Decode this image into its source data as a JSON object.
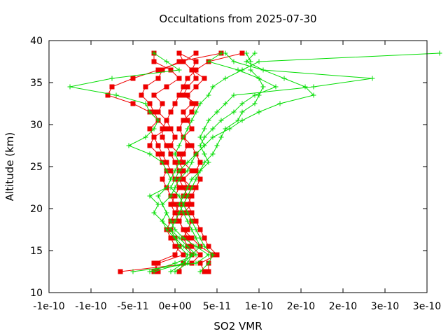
{
  "chart_data": {
    "type": "scatter",
    "title": "Occultations from 2025-07-30",
    "xlabel": "SO2 VMR",
    "ylabel": "Altitude (km)",
    "xlim": [
      -1.5e-10,
      3e-10
    ],
    "ylim": [
      10,
      40
    ],
    "x_tick_values": [
      -1.5e-10,
      -1e-10,
      -5e-11,
      0,
      5e-11,
      1e-10,
      1.5e-10,
      2e-10,
      2.5e-10,
      3e-10
    ],
    "x_tick_labels": [
      "-1e-10",
      "-1e-10",
      "-5e-11",
      "0e+00",
      "5e-11",
      "1e-10",
      "2e-10",
      "2e-10",
      "3e-10",
      "3e-10"
    ],
    "y_tick_values": [
      10,
      15,
      20,
      25,
      30,
      35,
      40
    ],
    "y_tick_labels": [
      "10",
      "15",
      "20",
      "25",
      "30",
      "35",
      "40"
    ],
    "grid": false,
    "legend": "none",
    "colors": {
      "red_series": "#ee0000",
      "green_series": "#00dd00",
      "axes": "#000000"
    },
    "series": [
      {
        "color": "#ee0000",
        "marker": "square",
        "altitudes": [
          38.5,
          37.5,
          36.5,
          35.5,
          34.5,
          33.5,
          32.5,
          31.5,
          30.5,
          29.5,
          28.5,
          27.5,
          26.5,
          25.5,
          24.5,
          23.5,
          22.5,
          21.5,
          20.5,
          19.5,
          18.5,
          17.5,
          16.5,
          15.5,
          14.5,
          13.5,
          12.5
        ],
        "profiles": [
          [
            8e-11,
            4e-11,
            2.5e-11,
            1.5e-11,
            1e-11,
            5e-12,
            0,
            -5e-12,
            -1e-11,
            -1.5e-11,
            -1.5e-11,
            -1e-11,
            -5e-12,
            0,
            5e-12,
            1e-11,
            1.5e-11,
            1e-11,
            5e-12,
            0,
            5e-12,
            1e-11,
            1.5e-11,
            2e-11,
            3e-11,
            2e-11,
            -6.5e-11
          ],
          [
            2.5e-11,
            1e-11,
            -2e-11,
            -5e-11,
            -7.5e-11,
            -8e-11,
            -5e-11,
            -3e-11,
            -2e-11,
            -1e-11,
            -2.5e-11,
            -2e-11,
            -1.5e-11,
            -1e-11,
            -5e-12,
            0,
            5e-12,
            0,
            -5e-12,
            0,
            -5e-12,
            -1e-11,
            -5e-12,
            0,
            1e-11,
            -2e-11,
            -2.5e-11
          ],
          [
            5e-12,
            2.5e-11,
            2e-11,
            3.5e-11,
            2.5e-11,
            1.5e-11,
            2e-11,
            1e-11,
            1.5e-11,
            2e-11,
            1e-11,
            2e-11,
            2.5e-11,
            3e-11,
            2.5e-11,
            3e-11,
            2.5e-11,
            2e-11,
            1.5e-11,
            2e-11,
            2.5e-11,
            3e-11,
            3.5e-11,
            4e-11,
            5e-11,
            3e-11,
            3.5e-11
          ],
          [
            5.5e-11,
            5e-12,
            -1.5e-11,
            -2e-11,
            -3.5e-11,
            -4e-11,
            -3e-11,
            -2.5e-11,
            -2e-11,
            -3e-11,
            -2.5e-11,
            -3e-11,
            -2e-11,
            -1.5e-11,
            -1e-11,
            -1.5e-11,
            -1e-11,
            -5e-12,
            0,
            5e-12,
            0,
            -5e-12,
            0,
            5e-12,
            0,
            -2.5e-11,
            -2e-11
          ],
          [
            -2.5e-11,
            -2.5e-11,
            -5e-12,
            5e-12,
            -1e-11,
            -2.5e-11,
            -1.5e-11,
            -2e-11,
            -1e-11,
            -5e-12,
            0,
            -5e-12,
            5e-12,
            1e-11,
            2e-11,
            1e-11,
            2e-11,
            1.5e-11,
            1e-11,
            1.5e-11,
            2e-11,
            1.5e-11,
            1e-11,
            1.5e-11,
            2e-11,
            1e-11,
            5e-12
          ],
          [
            5e-12,
            1e-11,
            2e-11,
            2.5e-11,
            1.5e-11,
            1e-11,
            2.5e-11,
            2e-11,
            1e-11,
            5e-12,
            1e-11,
            1.5e-11,
            1e-11,
            5e-12,
            1e-11,
            5e-12,
            1e-11,
            1.5e-11,
            2e-11,
            1e-11,
            5e-12,
            1e-11,
            2e-11,
            3e-11,
            4.5e-11,
            4e-11,
            4e-11
          ]
        ]
      },
      {
        "color": "#00dd00",
        "marker": "plus",
        "altitudes": [
          38.5,
          37.5,
          36.5,
          35.5,
          34.5,
          33.5,
          32.5,
          31.5,
          30.5,
          29.5,
          28.5,
          27.5,
          26.5,
          25.5,
          24.5,
          23.5,
          22.5,
          21.5,
          20.5,
          19.5,
          18.5,
          17.5,
          16.5,
          15.5,
          14.5,
          13.5,
          12.5
        ],
        "profiles": [
          [
            3.15e-10,
            1e-10,
            8e-11,
            6e-11,
            4.5e-11,
            4e-11,
            3e-11,
            2.5e-11,
            2e-11,
            1.5e-11,
            1e-11,
            5e-12,
            0,
            5e-12,
            0,
            -5e-12,
            -1e-11,
            -2e-11,
            -1.5e-11,
            -1e-11,
            -5e-12,
            0,
            1e-11,
            2.5e-11,
            4e-11,
            2.5e-11,
            -5e-11
          ],
          [
            9.5e-11,
            8.5e-11,
            1.05e-10,
            2.35e-10,
            1.65e-10,
            7e-11,
            6e-11,
            5e-11,
            4e-11,
            3.5e-11,
            3e-11,
            3.5e-11,
            2.5e-11,
            2e-11,
            1.5e-11,
            5e-12,
            0,
            -5e-12,
            -1.5e-11,
            -1e-11,
            -1.5e-11,
            -1e-11,
            0,
            1e-11,
            2e-11,
            1e-11,
            -2.5e-11
          ],
          [
            -2.5e-11,
            -1e-11,
            5e-12,
            -7.5e-11,
            -1.25e-10,
            -7e-11,
            -3.5e-11,
            -3e-11,
            -2e-11,
            -2.5e-11,
            -3.5e-11,
            -5.5e-11,
            -3e-11,
            -1.5e-11,
            -1e-11,
            -5e-12,
            -1e-11,
            -3e-11,
            -2e-11,
            -2.5e-11,
            -1.5e-11,
            -5e-12,
            5e-12,
            1.5e-11,
            2.5e-11,
            0,
            -3e-11
          ],
          [
            8.5e-11,
            9e-11,
            9e-11,
            1e-10,
            1.05e-10,
            1e-10,
            9.5e-11,
            8e-11,
            7.5e-11,
            6e-11,
            5.5e-11,
            5e-11,
            4.5e-11,
            3.5e-11,
            3e-11,
            2.5e-11,
            2e-11,
            1.5e-11,
            1e-11,
            1.5e-11,
            2e-11,
            2.5e-11,
            3e-11,
            3.5e-11,
            4.5e-11,
            4e-11,
            3e-11
          ],
          [
            6e-11,
            7e-11,
            1.05e-10,
            1.3e-10,
            1.55e-10,
            1.65e-10,
            1.25e-10,
            1e-10,
            8e-11,
            6.5e-11,
            4.5e-11,
            3.5e-11,
            2.5e-11,
            1.5e-11,
            5e-12,
            0,
            -5e-12,
            5e-12,
            1e-11,
            5e-12,
            0,
            -5e-12,
            0,
            5e-12,
            1.5e-11,
            1e-11,
            -5e-12
          ],
          [
            5.5e-11,
            4e-11,
            7.5e-11,
            1e-10,
            1.2e-10,
            9.5e-11,
            8e-11,
            7e-11,
            5.5e-11,
            4.5e-11,
            3.5e-11,
            3e-11,
            3.5e-11,
            4e-11,
            3e-11,
            2e-11,
            1.5e-11,
            1e-11,
            5e-12,
            1e-11,
            1.5e-11,
            2e-11,
            2.5e-11,
            3e-11,
            2e-11,
            1.5e-11,
            0
          ]
        ]
      }
    ]
  }
}
